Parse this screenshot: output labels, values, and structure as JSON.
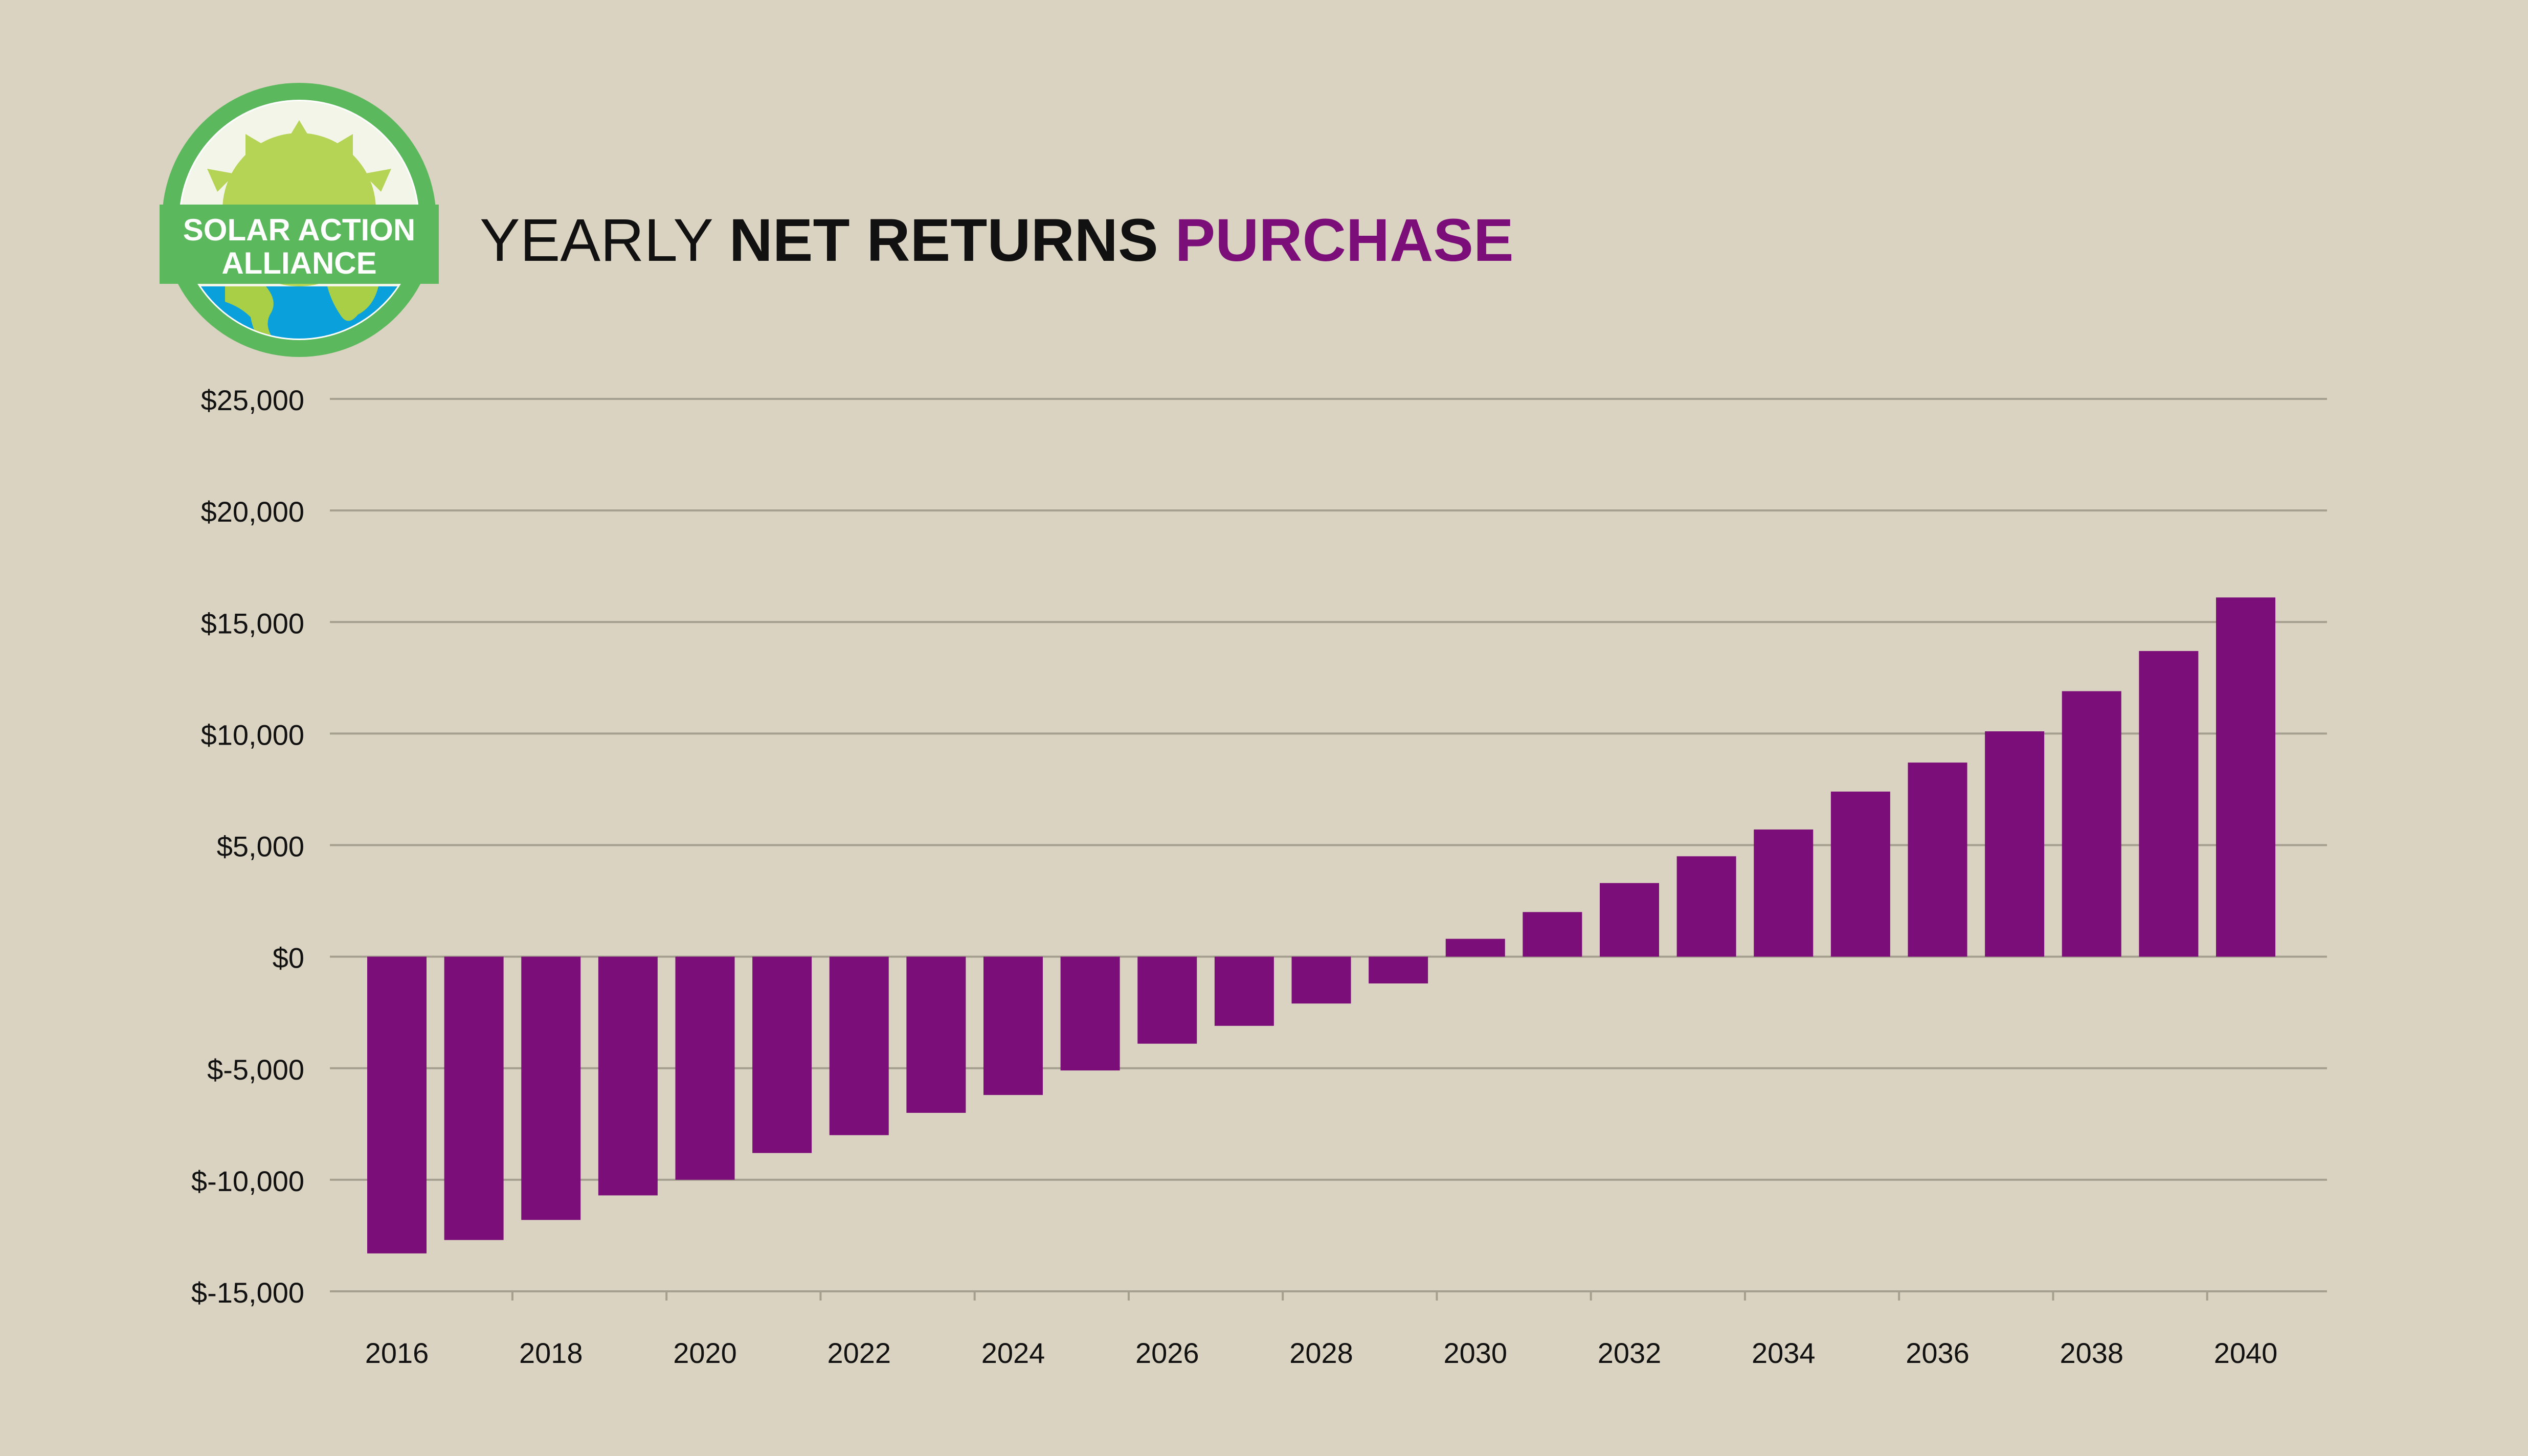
{
  "logo": {
    "line1": "SOLAR ACTION",
    "line2": "ALLIANCE"
  },
  "title": {
    "part1": "YEARLY",
    "part2": "NET RETURNS",
    "part3": "PURCHASE"
  },
  "colors": {
    "background": "#dad3c1",
    "bar": "#7b0e79",
    "grid": "#a59f8f",
    "text": "#111111",
    "accent": "#7b0e79",
    "logo_ring": "#5cb85c",
    "logo_sun": "#b5d455",
    "logo_ocean": "#0aa0dc",
    "logo_land": "#a8cf45"
  },
  "chart_data": {
    "type": "bar",
    "title": "YEARLY NET RETURNS PURCHASE",
    "xlabel": "",
    "ylabel": "",
    "categories": [
      "2016",
      "2017",
      "2018",
      "2019",
      "2020",
      "2021",
      "2022",
      "2023",
      "2024",
      "2025",
      "2026",
      "2027",
      "2028",
      "2029",
      "2030",
      "2031",
      "2032",
      "2033",
      "2034",
      "2035",
      "2036",
      "2037",
      "2038",
      "2039",
      "2040"
    ],
    "x_tick_labels": [
      "2016",
      "2018",
      "2020",
      "2022",
      "2024",
      "2026",
      "2028",
      "2030",
      "2032",
      "2034",
      "2036",
      "2038",
      "2040"
    ],
    "values": [
      -13300,
      -12700,
      -11800,
      -10700,
      -10000,
      -8800,
      -8000,
      -7000,
      -6200,
      -5100,
      -3900,
      -3100,
      -2100,
      -1200,
      800,
      2000,
      3300,
      4500,
      5700,
      7400,
      8700,
      10100,
      11900,
      13700,
      16100
    ],
    "ylim": [
      -15000,
      25000
    ],
    "y_ticks": [
      25000,
      20000,
      15000,
      10000,
      5000,
      0,
      -5000,
      -10000,
      -15000
    ],
    "y_tick_labels": [
      "$25,000",
      "$20,000",
      "$15,000",
      "$10,000",
      "$5,000",
      "$0",
      "$-5,000",
      "$-10,000",
      "$-15,000"
    ],
    "grid": true,
    "legend": "none"
  }
}
